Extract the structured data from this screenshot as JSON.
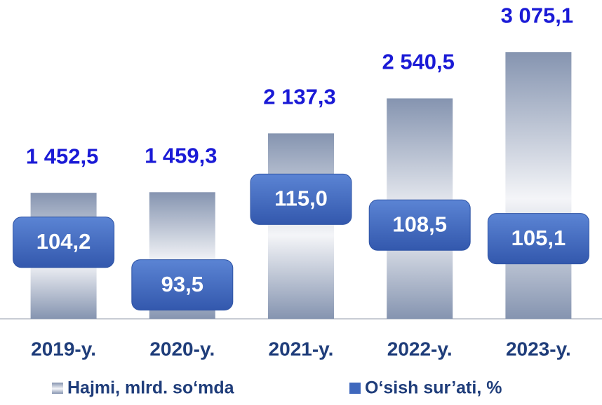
{
  "chart_data": {
    "type": "bar",
    "categories": [
      "2019-y.",
      "2020-y.",
      "2021-y.",
      "2022-y.",
      "2023-y."
    ],
    "series": [
      {
        "name": "Hajmi, mlrd. so‘mda",
        "color": "#8594b0",
        "values": [
          1452.5,
          1459.3,
          2137.3,
          2540.5,
          3075.1
        ],
        "value_labels": [
          "1 452,5",
          "1 459,3",
          "2 137,3",
          "2 540,5",
          "3 075,1"
        ]
      },
      {
        "name": "O‘sish sur’ati, %",
        "color": "#3f68bd",
        "axis": "y2",
        "values": [
          104.2,
          93.5,
          115.0,
          108.5,
          105.1
        ],
        "value_labels": [
          "104,2",
          "93,5",
          "115,0",
          "108,5",
          "105,1"
        ]
      }
    ],
    "ylim": [
      0,
      3400
    ],
    "y2lim": [
      85,
      159
    ]
  }
}
